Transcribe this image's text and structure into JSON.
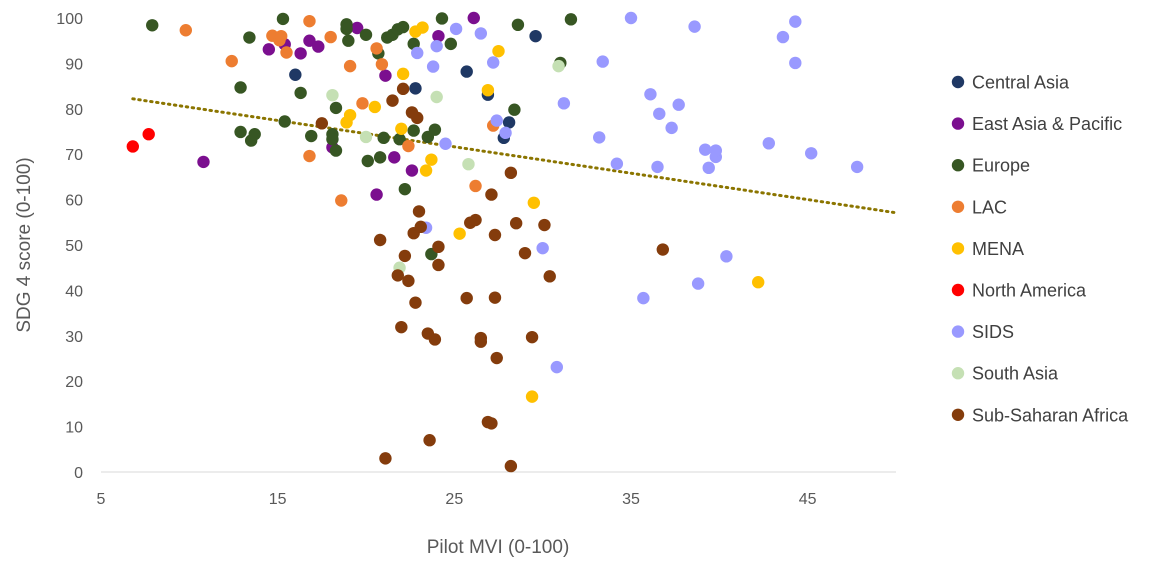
{
  "chart_data": {
    "type": "scatter",
    "title": "",
    "xlabel": "Pilot MVI (0-100)",
    "ylabel": "SDG 4 score (0-100)",
    "xlim": [
      5,
      50
    ],
    "ylim": [
      0,
      100
    ],
    "xticks": [
      5,
      15,
      25,
      35,
      45
    ],
    "yticks": [
      0,
      10,
      20,
      30,
      40,
      50,
      60,
      70,
      80,
      90,
      100
    ],
    "grid": false,
    "legend_position": "right",
    "series": [
      {
        "name": "Central Asia",
        "color": "#1f3864",
        "points": [
          [
            16,
            87.5
          ],
          [
            22.8,
            84.5
          ],
          [
            25.7,
            88.2
          ],
          [
            26.9,
            83.1
          ],
          [
            28.1,
            77
          ],
          [
            27.8,
            73.6
          ],
          [
            29.6,
            96
          ]
        ]
      },
      {
        "name": "East Asia & Pacific",
        "color": "#7b0f8f",
        "points": [
          [
            10.8,
            68.3
          ],
          [
            14.5,
            93.1
          ],
          [
            15.4,
            94.2
          ],
          [
            16.3,
            92.2
          ],
          [
            16.8,
            95
          ],
          [
            17.3,
            93.7
          ],
          [
            18.1,
            71.5
          ],
          [
            19.5,
            97.8
          ],
          [
            20.6,
            61.1
          ],
          [
            21.1,
            87.3
          ],
          [
            21.6,
            69.3
          ],
          [
            22.6,
            66.4
          ],
          [
            24.1,
            96
          ],
          [
            26.1,
            100
          ]
        ]
      },
      {
        "name": "Europe",
        "color": "#375623",
        "points": [
          [
            7.9,
            98.4
          ],
          [
            12.9,
            84.7
          ],
          [
            12.9,
            74.9
          ],
          [
            13.4,
            95.7
          ],
          [
            13.5,
            73
          ],
          [
            13.7,
            74.4
          ],
          [
            15.3,
            99.8
          ],
          [
            15.4,
            77.2
          ],
          [
            16.3,
            83.5
          ],
          [
            16.9,
            74
          ],
          [
            18.1,
            74.4
          ],
          [
            18.1,
            73.3
          ],
          [
            18.3,
            70.8
          ],
          [
            18.3,
            80.2
          ],
          [
            18.9,
            98.6
          ],
          [
            18.9,
            97.6
          ],
          [
            19,
            95
          ],
          [
            20,
            96.3
          ],
          [
            20.1,
            68.5
          ],
          [
            20.7,
            92.2
          ],
          [
            20.8,
            69.3
          ],
          [
            21,
            73.6
          ],
          [
            21.2,
            95.7
          ],
          [
            21.5,
            96.3
          ],
          [
            21.8,
            97.5
          ],
          [
            21.9,
            73.3
          ],
          [
            22.1,
            98
          ],
          [
            22.2,
            62.3
          ],
          [
            22.7,
            94.3
          ],
          [
            22.7,
            75.2
          ],
          [
            23.5,
            73.8
          ],
          [
            23.7,
            48
          ],
          [
            23.9,
            75.4
          ],
          [
            24.3,
            99.9
          ],
          [
            24.8,
            94.3
          ],
          [
            28.4,
            79.8
          ],
          [
            28.6,
            98.5
          ],
          [
            31,
            90.1
          ],
          [
            31.6,
            99.7
          ]
        ]
      },
      {
        "name": "LAC",
        "color": "#ed7d31",
        "points": [
          [
            9.8,
            97.3
          ],
          [
            12.4,
            90.5
          ],
          [
            14.7,
            96.1
          ],
          [
            15.1,
            95.1
          ],
          [
            15.2,
            96
          ],
          [
            15.5,
            92.4
          ],
          [
            16.8,
            99.3
          ],
          [
            16.8,
            69.6
          ],
          [
            18,
            95.8
          ],
          [
            18.6,
            59.8
          ],
          [
            19.1,
            89.4
          ],
          [
            19.8,
            81.2
          ],
          [
            20.6,
            93.3
          ],
          [
            20.9,
            89.8
          ],
          [
            22.4,
            71.8
          ],
          [
            26.2,
            63
          ],
          [
            27.2,
            76.3
          ]
        ]
      },
      {
        "name": "MENA",
        "color": "#ffc000",
        "points": [
          [
            18.9,
            77
          ],
          [
            19.1,
            78.6
          ],
          [
            20.5,
            80.4
          ],
          [
            22,
            75.6
          ],
          [
            22.1,
            87.7
          ],
          [
            22.8,
            97
          ],
          [
            23.2,
            97.9
          ],
          [
            23.4,
            66.4
          ],
          [
            23.7,
            68.8
          ],
          [
            25.3,
            52.5
          ],
          [
            26.9,
            84.1
          ],
          [
            27.5,
            92.7
          ],
          [
            29.5,
            59.3
          ],
          [
            29.4,
            16.6
          ],
          [
            42.2,
            41.8
          ]
        ]
      },
      {
        "name": "North America",
        "color": "#ff0000",
        "points": [
          [
            6.8,
            71.7
          ],
          [
            7.7,
            74.4
          ]
        ]
      },
      {
        "name": "SIDS",
        "color": "#9999ff",
        "points": [
          [
            22.9,
            92.3
          ],
          [
            23.4,
            53.8
          ],
          [
            23.8,
            89.3
          ],
          [
            24,
            93.8
          ],
          [
            24.5,
            72.3
          ],
          [
            25.1,
            97.6
          ],
          [
            26.5,
            96.6
          ],
          [
            27.2,
            90.2
          ],
          [
            27.4,
            77.4
          ],
          [
            27.9,
            74.7
          ],
          [
            30,
            49.3
          ],
          [
            30.8,
            23.1
          ],
          [
            31.2,
            81.2
          ],
          [
            33.2,
            73.7
          ],
          [
            33.4,
            90.4
          ],
          [
            34.2,
            67.9
          ],
          [
            35,
            100
          ],
          [
            35.7,
            38.3
          ],
          [
            36.1,
            83.2
          ],
          [
            36.5,
            67.2
          ],
          [
            36.6,
            78.9
          ],
          [
            37.3,
            75.8
          ],
          [
            37.7,
            80.9
          ],
          [
            38.6,
            98.1
          ],
          [
            38.8,
            41.5
          ],
          [
            39.2,
            71
          ],
          [
            39.4,
            67
          ],
          [
            39.8,
            69.4
          ],
          [
            39.8,
            70.8
          ],
          [
            40.4,
            47.5
          ],
          [
            42.8,
            72.4
          ],
          [
            43.6,
            95.8
          ],
          [
            44.3,
            99.2
          ],
          [
            44.3,
            90.1
          ],
          [
            45.2,
            70.2
          ],
          [
            47.8,
            67.2
          ]
        ]
      },
      {
        "name": "South Asia",
        "color": "#c5e0b4",
        "points": [
          [
            18.1,
            83
          ],
          [
            20,
            73.8
          ],
          [
            21.9,
            45
          ],
          [
            24,
            82.6
          ],
          [
            25.8,
            67.8
          ],
          [
            30.9,
            89.4
          ]
        ]
      },
      {
        "name": "Sub-Saharan Africa",
        "color": "#843c0c",
        "points": [
          [
            17.5,
            76.8
          ],
          [
            20.8,
            51.1
          ],
          [
            21.1,
            3
          ],
          [
            21.5,
            81.8
          ],
          [
            21.8,
            43.3
          ],
          [
            22,
            31.9
          ],
          [
            22.1,
            84.4
          ],
          [
            22.2,
            47.6
          ],
          [
            22.4,
            42.1
          ],
          [
            22.6,
            79.2
          ],
          [
            22.7,
            52.6
          ],
          [
            22.8,
            37.3
          ],
          [
            22.9,
            78
          ],
          [
            23,
            57.4
          ],
          [
            23.1,
            54
          ],
          [
            23.5,
            30.5
          ],
          [
            23.6,
            7
          ],
          [
            23.9,
            29.2
          ],
          [
            24.1,
            49.6
          ],
          [
            24.1,
            45.6
          ],
          [
            25.7,
            38.3
          ],
          [
            25.9,
            54.9
          ],
          [
            26.2,
            55.5
          ],
          [
            26.5,
            29.5
          ],
          [
            26.5,
            28.7
          ],
          [
            26.9,
            11
          ],
          [
            27.1,
            61.1
          ],
          [
            27.1,
            10.7
          ],
          [
            27.3,
            38.4
          ],
          [
            27.3,
            52.2
          ],
          [
            27.4,
            25.1
          ],
          [
            28.2,
            65.9
          ],
          [
            28.2,
            1.3
          ],
          [
            28.5,
            54.8
          ],
          [
            29,
            48.2
          ],
          [
            29.4,
            29.7
          ],
          [
            30.1,
            54.4
          ],
          [
            30.4,
            43.1
          ],
          [
            36.8,
            49
          ]
        ]
      }
    ],
    "trendline": {
      "style": "dotted",
      "color": "#8b7500",
      "x": [
        6.8,
        50
      ],
      "y": [
        82.2,
        57.1
      ]
    }
  }
}
